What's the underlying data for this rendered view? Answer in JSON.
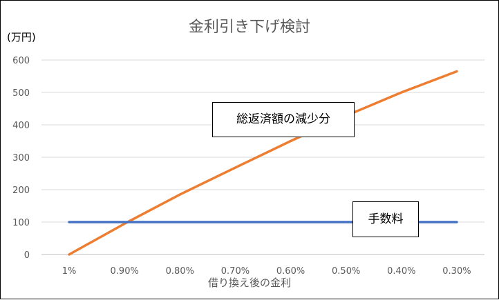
{
  "chart_data": {
    "type": "line",
    "title": "金利引き下げ検討",
    "unit_label": "(万円)",
    "xlabel": "借り換え後の金利",
    "categories": [
      "1%",
      "0.90%",
      "0.80%",
      "0.70%",
      "0.60%",
      "0.50%",
      "0.40%",
      "0.30%"
    ],
    "yticks": [
      0,
      100,
      200,
      300,
      400,
      500,
      600
    ],
    "ylim": [
      0,
      600
    ],
    "grid": true,
    "series": [
      {
        "name": "総返済額の減少分",
        "color": "#ED7D31",
        "values": [
          0,
          95,
          185,
          268,
          350,
          428,
          500,
          565
        ]
      },
      {
        "name": "手数料",
        "color": "#4472C4",
        "values": [
          100,
          100,
          100,
          100,
          100,
          100,
          100,
          100
        ]
      }
    ],
    "annotations": [
      "総返済額の減少分",
      "手数料"
    ]
  }
}
